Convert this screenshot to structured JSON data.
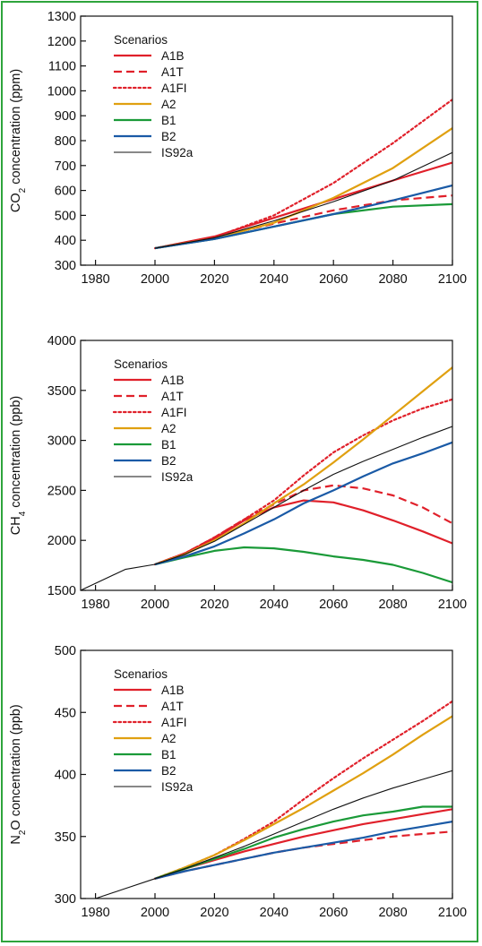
{
  "chart_data": [
    {
      "type": "line",
      "ylabel_parts": [
        "CO",
        "2",
        " concentration (ppm)"
      ],
      "xlim": [
        1975,
        2100
      ],
      "ylim": [
        300,
        1300
      ],
      "xticks": [
        1980,
        2000,
        2020,
        2040,
        2060,
        2080,
        2100
      ],
      "yticks": [
        300,
        400,
        500,
        600,
        700,
        800,
        900,
        1000,
        1100,
        1200,
        1300
      ],
      "legend_title": "Scenarios",
      "legend_location": "upper-left",
      "series": [
        {
          "name": "A1B",
          "color": "#e0202a",
          "style": "solid",
          "width": 2.2,
          "x": [
            2000,
            2020,
            2040,
            2060,
            2080,
            2100
          ],
          "y": [
            368,
            415,
            490,
            565,
            640,
            712
          ]
        },
        {
          "name": "A1T",
          "color": "#e0202a",
          "style": "dashed",
          "width": 2.2,
          "x": [
            2000,
            2020,
            2040,
            2060,
            2080,
            2100
          ],
          "y": [
            368,
            412,
            467,
            520,
            560,
            580
          ]
        },
        {
          "name": "A1FI",
          "color": "#e0202a",
          "style": "dotted",
          "width": 2.2,
          "x": [
            2000,
            2020,
            2040,
            2060,
            2080,
            2100
          ],
          "y": [
            368,
            412,
            500,
            630,
            790,
            965
          ]
        },
        {
          "name": "A2",
          "color": "#e0a010",
          "style": "solid",
          "width": 2.2,
          "x": [
            2000,
            2020,
            2040,
            2060,
            2080,
            2100
          ],
          "y": [
            368,
            408,
            470,
            570,
            690,
            850
          ]
        },
        {
          "name": "B1",
          "color": "#1a9a38",
          "style": "solid",
          "width": 2.2,
          "x": [
            2000,
            2020,
            2040,
            2060,
            2080,
            2100
          ],
          "y": [
            368,
            405,
            455,
            505,
            535,
            545
          ]
        },
        {
          "name": "B2",
          "color": "#1a5aa6",
          "style": "solid",
          "width": 2.2,
          "x": [
            2000,
            2020,
            2040,
            2060,
            2080,
            2100
          ],
          "y": [
            368,
            405,
            455,
            505,
            560,
            620
          ]
        },
        {
          "name": "IS92a",
          "color": "#111111",
          "style": "solid",
          "width": 1.1,
          "x": [
            2000,
            2020,
            2040,
            2060,
            2080,
            2100
          ],
          "y": [
            368,
            410,
            478,
            555,
            640,
            752
          ]
        }
      ]
    },
    {
      "type": "line",
      "ylabel_parts": [
        "CH",
        "4",
        " concentration (ppb)"
      ],
      "xlim": [
        1975,
        2100
      ],
      "ylim": [
        1500,
        4000
      ],
      "xticks": [
        1980,
        2000,
        2020,
        2040,
        2060,
        2080,
        2100
      ],
      "yticks": [
        1500,
        2000,
        2500,
        3000,
        3500,
        4000
      ],
      "legend_title": "Scenarios",
      "legend_location": "upper-left",
      "series": [
        {
          "name": "A1B",
          "color": "#e0202a",
          "style": "solid",
          "width": 2.2,
          "x": [
            2000,
            2010,
            2020,
            2030,
            2040,
            2050,
            2060,
            2070,
            2080,
            2090,
            2100
          ],
          "y": [
            1760,
            1870,
            2020,
            2200,
            2330,
            2400,
            2380,
            2300,
            2200,
            2090,
            1970
          ]
        },
        {
          "name": "A1T",
          "color": "#e0202a",
          "style": "dashed",
          "width": 2.2,
          "x": [
            2000,
            2010,
            2020,
            2030,
            2040,
            2050,
            2060,
            2070,
            2080,
            2090,
            2100
          ],
          "y": [
            1760,
            1870,
            2030,
            2210,
            2360,
            2500,
            2550,
            2520,
            2450,
            2330,
            2170
          ]
        },
        {
          "name": "A1FI",
          "color": "#e0202a",
          "style": "dotted",
          "width": 2.2,
          "x": [
            2000,
            2010,
            2020,
            2030,
            2040,
            2050,
            2060,
            2070,
            2080,
            2090,
            2100
          ],
          "y": [
            1760,
            1870,
            2030,
            2210,
            2400,
            2650,
            2880,
            3050,
            3200,
            3320,
            3410
          ]
        },
        {
          "name": "A2",
          "color": "#e0a010",
          "style": "solid",
          "width": 2.2,
          "x": [
            2000,
            2010,
            2020,
            2030,
            2040,
            2050,
            2060,
            2070,
            2080,
            2090,
            2100
          ],
          "y": [
            1760,
            1860,
            2000,
            2170,
            2370,
            2560,
            2780,
            3010,
            3250,
            3490,
            3730
          ]
        },
        {
          "name": "B1",
          "color": "#1a9a38",
          "style": "solid",
          "width": 2.2,
          "x": [
            2000,
            2010,
            2020,
            2030,
            2040,
            2050,
            2060,
            2070,
            2080,
            2090,
            2100
          ],
          "y": [
            1760,
            1830,
            1895,
            1930,
            1920,
            1885,
            1840,
            1805,
            1755,
            1675,
            1580
          ]
        },
        {
          "name": "B2",
          "color": "#1a5aa6",
          "style": "solid",
          "width": 2.2,
          "x": [
            2000,
            2010,
            2020,
            2030,
            2040,
            2050,
            2060,
            2070,
            2080,
            2090,
            2100
          ],
          "y": [
            1760,
            1840,
            1940,
            2070,
            2210,
            2370,
            2500,
            2640,
            2770,
            2870,
            2980
          ]
        },
        {
          "name": "IS92a",
          "color": "#111111",
          "style": "solid",
          "width": 1.1,
          "x": [
            1975,
            1990,
            2000,
            2010,
            2020,
            2030,
            2040,
            2050,
            2060,
            2070,
            2080,
            2090,
            2100
          ],
          "y": [
            1500,
            1710,
            1760,
            1860,
            1990,
            2160,
            2330,
            2500,
            2660,
            2790,
            2910,
            3030,
            3140
          ]
        }
      ]
    },
    {
      "type": "line",
      "ylabel_parts": [
        "N",
        "2",
        "O concentration (ppb)"
      ],
      "xlim": [
        1975,
        2100
      ],
      "ylim": [
        300,
        500
      ],
      "xticks": [
        1980,
        2000,
        2020,
        2040,
        2060,
        2080,
        2100
      ],
      "yticks": [
        300,
        350,
        400,
        450,
        500
      ],
      "legend_title": "Scenarios",
      "legend_location": "upper-left",
      "series": [
        {
          "name": "A1B",
          "color": "#e0202a",
          "style": "solid",
          "width": 2.2,
          "x": [
            2000,
            2010,
            2020,
            2030,
            2040,
            2050,
            2060,
            2070,
            2080,
            2090,
            2100
          ],
          "y": [
            316,
            324,
            331,
            338,
            344,
            350,
            355,
            360,
            364,
            368,
            372
          ]
        },
        {
          "name": "A1T",
          "color": "#e0202a",
          "style": "dashed",
          "width": 2.2,
          "x": [
            2000,
            2010,
            2020,
            2030,
            2040,
            2050,
            2060,
            2070,
            2080,
            2090,
            2100
          ],
          "y": [
            316,
            322,
            327,
            332,
            337,
            341,
            344,
            347,
            350,
            352,
            354
          ]
        },
        {
          "name": "A1FI",
          "color": "#e0202a",
          "style": "dotted",
          "width": 2.2,
          "x": [
            2000,
            2010,
            2020,
            2030,
            2040,
            2050,
            2060,
            2070,
            2080,
            2090,
            2100
          ],
          "y": [
            316,
            325,
            335,
            348,
            362,
            380,
            397,
            413,
            428,
            443,
            459
          ]
        },
        {
          "name": "A2",
          "color": "#e0a010",
          "style": "solid",
          "width": 2.2,
          "x": [
            2000,
            2010,
            2020,
            2030,
            2040,
            2050,
            2060,
            2070,
            2080,
            2090,
            2100
          ],
          "y": [
            316,
            325,
            335,
            347,
            360,
            373,
            387,
            401,
            416,
            432,
            447
          ]
        },
        {
          "name": "B1",
          "color": "#1a9a38",
          "style": "solid",
          "width": 2.2,
          "x": [
            2000,
            2010,
            2020,
            2030,
            2040,
            2050,
            2060,
            2070,
            2080,
            2090,
            2100
          ],
          "y": [
            316,
            324,
            332,
            340,
            349,
            356,
            362,
            367,
            370,
            374,
            374
          ]
        },
        {
          "name": "B2",
          "color": "#1a5aa6",
          "style": "solid",
          "width": 2.2,
          "x": [
            2000,
            2010,
            2020,
            2030,
            2040,
            2050,
            2060,
            2070,
            2080,
            2090,
            2100
          ],
          "y": [
            316,
            322,
            327,
            332,
            337,
            341,
            345,
            349,
            354,
            358,
            362
          ]
        },
        {
          "name": "IS92a",
          "color": "#111111",
          "style": "solid",
          "width": 1.1,
          "x": [
            1980,
            1990,
            2000,
            2010,
            2020,
            2030,
            2040,
            2050,
            2060,
            2070,
            2080,
            2090,
            2100
          ],
          "y": [
            300,
            308,
            316,
            324,
            333,
            342,
            352,
            362,
            372,
            381,
            389,
            396,
            403
          ]
        }
      ]
    }
  ]
}
